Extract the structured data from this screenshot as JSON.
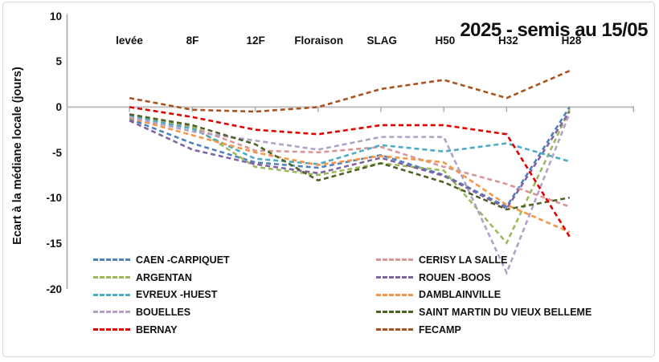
{
  "chart_data": {
    "type": "line",
    "title": "2025 - semis au 15/05",
    "ylabel": "Ecart à la médiane locale (jours)",
    "categories": [
      "levée",
      "8F",
      "12F",
      "Floraison",
      "SLAG",
      "H50",
      "H32",
      "H28"
    ],
    "y_ticks": [
      10,
      5,
      0,
      -5,
      -10,
      -15,
      -20
    ],
    "ylim": [
      -20,
      10
    ],
    "grid": false,
    "line_style": "dashed",
    "legend_position": "bottom-two-columns",
    "axis_color": "#a6a6a6",
    "zero_line_color": "#bfbfbf",
    "series": [
      {
        "name": "CAEN -CARPIQUET",
        "color": "#4F81BD",
        "values": [
          -1.3,
          -4.0,
          -6.1,
          -6.7,
          -5.3,
          -7.5,
          -11.0,
          0.0
        ]
      },
      {
        "name": "CERISY LA SALLE",
        "color": "#D99694",
        "values": [
          -1.0,
          -2.2,
          -4.8,
          -5.0,
          -4.4,
          -6.6,
          -8.5,
          -11.0
        ]
      },
      {
        "name": "ARGENTAN",
        "color": "#9BBB59",
        "values": [
          -0.9,
          -2.1,
          -6.6,
          -7.5,
          -6.2,
          -7.0,
          -15.0,
          -0.3
        ]
      },
      {
        "name": "ROUEN -BOOS",
        "color": "#8064A2",
        "values": [
          -1.5,
          -4.7,
          -6.3,
          -7.3,
          -5.6,
          -7.6,
          -11.2,
          -0.5
        ]
      },
      {
        "name": "EVREUX -HUEST",
        "color": "#4BACC6",
        "values": [
          -1.0,
          -2.4,
          -5.7,
          -6.3,
          -4.2,
          -4.9,
          -4.0,
          -6.0
        ]
      },
      {
        "name": "DAMBLAINVILLE",
        "color": "#F79646",
        "values": [
          -1.2,
          -3.1,
          -5.0,
          -6.4,
          -5.4,
          -6.1,
          -10.8,
          -13.8
        ]
      },
      {
        "name": "BOUELLES",
        "color": "#B2A1C7",
        "values": [
          -1.1,
          -2.7,
          -3.7,
          -4.7,
          -3.3,
          -3.3,
          -18.3,
          -0.7
        ]
      },
      {
        "name": "SAINT MARTIN DU VIEUX BELLEME",
        "color": "#4F6228",
        "values": [
          -0.8,
          -2.0,
          -4.1,
          -8.1,
          -6.2,
          -8.3,
          -11.3,
          -10.0
        ]
      },
      {
        "name": "BERNAY",
        "color": "#E00000",
        "values": [
          0.0,
          -1.1,
          -2.5,
          -3.0,
          -2.0,
          -2.0,
          -3.0,
          -14.3
        ]
      },
      {
        "name": "FECAMP",
        "color": "#A9521E",
        "values": [
          1.0,
          -0.3,
          -0.5,
          0.0,
          2.0,
          3.0,
          1.0,
          4.0
        ]
      }
    ]
  }
}
